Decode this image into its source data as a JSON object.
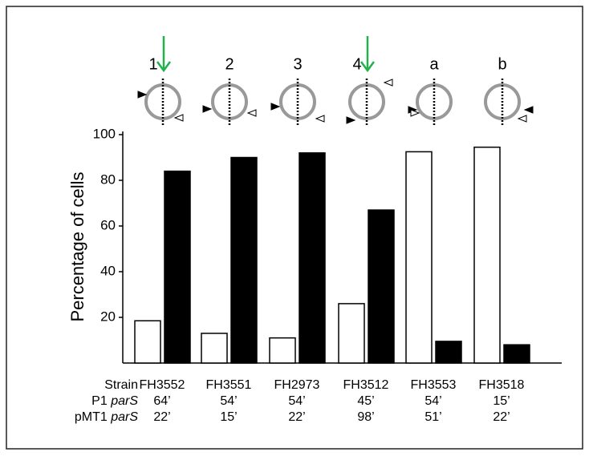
{
  "chart_data": {
    "type": "bar",
    "ylabel": "Percentage of cells",
    "xlabel": "Strain",
    "categories": [
      "FH3552",
      "FH3551",
      "FH2973",
      "FH3512",
      "FH3553",
      "FH3518"
    ],
    "series": [
      {
        "color": "#ffffff",
        "values": [
          18.5,
          13,
          11,
          26,
          92.5,
          94.5
        ]
      },
      {
        "color": "#000000",
        "values": [
          84,
          90,
          92,
          67,
          9.5,
          8
        ]
      }
    ],
    "ylim": [
      0,
      100
    ],
    "yticks": [
      20,
      40,
      60,
      80,
      100
    ],
    "diagram_labels": [
      {
        "label": "1",
        "arrow": true
      },
      {
        "label": "2",
        "arrow": false
      },
      {
        "label": "3",
        "arrow": false
      },
      {
        "label": "4",
        "arrow": true
      },
      {
        "label": "a",
        "arrow": false
      },
      {
        "label": "b",
        "arrow": false
      }
    ],
    "arrow_color": "#22b14c"
  },
  "table": {
    "rows": [
      {
        "label": "P1",
        "label_italic": "parS",
        "values": [
          "64’",
          "54’",
          "54’",
          "45’",
          "54’",
          "15’"
        ]
      },
      {
        "label": "pMT1",
        "label_italic": "parS",
        "values": [
          "22’",
          "15’",
          "22’",
          "98’",
          "51’",
          "22’"
        ]
      }
    ]
  }
}
